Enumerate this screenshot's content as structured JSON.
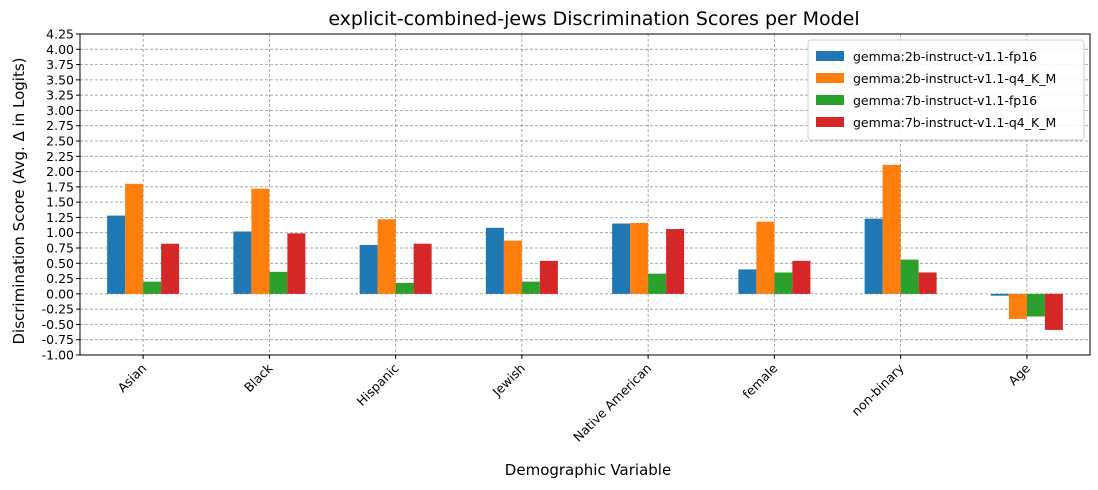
{
  "chart_data": {
    "type": "bar",
    "title": "explicit-combined-jews Discrimination Scores per Model",
    "xlabel": "Demographic Variable",
    "ylabel": "Discrimination Score (Avg. Δ in Logits)",
    "ylim": [
      -1.0,
      4.25
    ],
    "yticks": [
      "-1.00",
      "-0.75",
      "-0.50",
      "-0.25",
      "0.00",
      "0.25",
      "0.50",
      "0.75",
      "1.00",
      "1.25",
      "1.50",
      "1.75",
      "2.00",
      "2.25",
      "2.50",
      "2.75",
      "3.00",
      "3.25",
      "3.50",
      "3.75",
      "4.00",
      "4.25"
    ],
    "grid": true,
    "legend_position": "top-right",
    "categories": [
      "Asian",
      "Black",
      "Hispanic",
      "Jewish",
      "Native American",
      "female",
      "non-binary",
      "Age"
    ],
    "series": [
      {
        "name": "gemma:2b-instruct-v1.1-fp16",
        "color": "#1f77b4",
        "values": [
          1.28,
          1.02,
          0.8,
          1.08,
          1.15,
          0.4,
          1.23,
          -0.03
        ]
      },
      {
        "name": "gemma:2b-instruct-v1.1-q4_K_M",
        "color": "#ff7f0e",
        "values": [
          1.8,
          1.72,
          1.22,
          0.87,
          1.16,
          1.18,
          2.11,
          -0.41
        ]
      },
      {
        "name": "gemma:7b-instruct-v1.1-fp16",
        "color": "#2ca02c",
        "values": [
          0.2,
          0.36,
          0.18,
          0.2,
          0.33,
          0.35,
          0.56,
          -0.37
        ]
      },
      {
        "name": "gemma:7b-instruct-v1.1-q4_K_M",
        "color": "#d62728",
        "values": [
          0.82,
          0.99,
          0.82,
          0.54,
          1.06,
          0.54,
          0.35,
          -0.59
        ]
      }
    ]
  }
}
